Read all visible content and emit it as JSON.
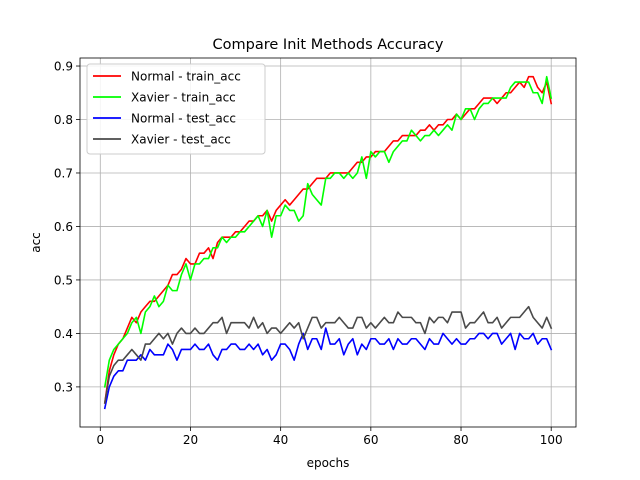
{
  "chart_data": {
    "type": "line",
    "title": "Compare Init Methods Accuracy",
    "xlabel": "epochs",
    "ylabel": "acc",
    "xlim": [
      -4.5,
      105.5
    ],
    "ylim": [
      0.225,
      0.915
    ],
    "xticks": [
      0,
      20,
      40,
      60,
      80,
      100
    ],
    "yticks": [
      0.3,
      0.4,
      0.5,
      0.6,
      0.7,
      0.8,
      0.9
    ],
    "grid": true,
    "legend_position": "top-left",
    "x": [
      1,
      2,
      3,
      4,
      5,
      6,
      7,
      8,
      9,
      10,
      11,
      12,
      13,
      14,
      15,
      16,
      17,
      18,
      19,
      20,
      21,
      22,
      23,
      24,
      25,
      26,
      27,
      28,
      29,
      30,
      31,
      32,
      33,
      34,
      35,
      36,
      37,
      38,
      39,
      40,
      41,
      42,
      43,
      44,
      45,
      46,
      47,
      48,
      49,
      50,
      51,
      52,
      53,
      54,
      55,
      56,
      57,
      58,
      59,
      60,
      61,
      62,
      63,
      64,
      65,
      66,
      67,
      68,
      69,
      70,
      71,
      72,
      73,
      74,
      75,
      76,
      77,
      78,
      79,
      80,
      81,
      82,
      83,
      84,
      85,
      86,
      87,
      88,
      89,
      90,
      91,
      92,
      93,
      94,
      95,
      96,
      97,
      98,
      99,
      100
    ],
    "series": [
      {
        "name": "Normal - train_acc",
        "color": "#ff0000",
        "values": [
          0.27,
          0.33,
          0.36,
          0.38,
          0.39,
          0.41,
          0.43,
          0.42,
          0.44,
          0.45,
          0.46,
          0.46,
          0.47,
          0.48,
          0.49,
          0.51,
          0.51,
          0.52,
          0.54,
          0.53,
          0.53,
          0.55,
          0.55,
          0.56,
          0.54,
          0.57,
          0.58,
          0.58,
          0.58,
          0.59,
          0.59,
          0.6,
          0.61,
          0.61,
          0.62,
          0.62,
          0.63,
          0.61,
          0.63,
          0.64,
          0.65,
          0.64,
          0.65,
          0.66,
          0.67,
          0.67,
          0.68,
          0.69,
          0.69,
          0.69,
          0.7,
          0.7,
          0.7,
          0.7,
          0.7,
          0.71,
          0.72,
          0.72,
          0.73,
          0.73,
          0.74,
          0.74,
          0.74,
          0.75,
          0.76,
          0.76,
          0.77,
          0.77,
          0.77,
          0.77,
          0.78,
          0.78,
          0.79,
          0.78,
          0.79,
          0.79,
          0.8,
          0.8,
          0.81,
          0.8,
          0.81,
          0.82,
          0.82,
          0.83,
          0.84,
          0.84,
          0.84,
          0.83,
          0.84,
          0.85,
          0.85,
          0.86,
          0.87,
          0.86,
          0.88,
          0.88,
          0.86,
          0.85,
          0.87,
          0.83
        ]
      },
      {
        "name": "Xavier - train_acc",
        "color": "#00ff00",
        "values": [
          0.3,
          0.35,
          0.37,
          0.38,
          0.39,
          0.4,
          0.42,
          0.43,
          0.4,
          0.44,
          0.45,
          0.47,
          0.45,
          0.46,
          0.49,
          0.48,
          0.48,
          0.51,
          0.53,
          0.5,
          0.53,
          0.53,
          0.54,
          0.54,
          0.56,
          0.56,
          0.58,
          0.57,
          0.58,
          0.58,
          0.59,
          0.59,
          0.6,
          0.61,
          0.62,
          0.6,
          0.63,
          0.58,
          0.62,
          0.62,
          0.64,
          0.63,
          0.63,
          0.61,
          0.62,
          0.68,
          0.66,
          0.65,
          0.64,
          0.69,
          0.69,
          0.7,
          0.7,
          0.69,
          0.7,
          0.69,
          0.7,
          0.73,
          0.69,
          0.74,
          0.73,
          0.74,
          0.74,
          0.72,
          0.74,
          0.75,
          0.76,
          0.76,
          0.78,
          0.77,
          0.76,
          0.77,
          0.77,
          0.78,
          0.77,
          0.78,
          0.79,
          0.78,
          0.81,
          0.8,
          0.82,
          0.82,
          0.8,
          0.82,
          0.83,
          0.83,
          0.84,
          0.84,
          0.84,
          0.84,
          0.86,
          0.87,
          0.87,
          0.87,
          0.87,
          0.85,
          0.85,
          0.83,
          0.88,
          0.84
        ]
      },
      {
        "name": "Normal - test_acc",
        "color": "#0000ff",
        "values": [
          0.26,
          0.3,
          0.32,
          0.33,
          0.33,
          0.35,
          0.35,
          0.35,
          0.36,
          0.35,
          0.37,
          0.36,
          0.36,
          0.36,
          0.38,
          0.37,
          0.35,
          0.37,
          0.37,
          0.37,
          0.38,
          0.37,
          0.37,
          0.38,
          0.36,
          0.35,
          0.37,
          0.37,
          0.38,
          0.38,
          0.37,
          0.37,
          0.38,
          0.37,
          0.38,
          0.36,
          0.37,
          0.35,
          0.36,
          0.38,
          0.38,
          0.37,
          0.35,
          0.38,
          0.4,
          0.37,
          0.39,
          0.39,
          0.37,
          0.41,
          0.38,
          0.38,
          0.39,
          0.36,
          0.38,
          0.39,
          0.36,
          0.38,
          0.37,
          0.39,
          0.39,
          0.38,
          0.38,
          0.39,
          0.37,
          0.39,
          0.38,
          0.38,
          0.39,
          0.39,
          0.38,
          0.37,
          0.39,
          0.38,
          0.38,
          0.4,
          0.39,
          0.38,
          0.39,
          0.38,
          0.38,
          0.39,
          0.39,
          0.4,
          0.4,
          0.39,
          0.4,
          0.4,
          0.38,
          0.39,
          0.4,
          0.37,
          0.4,
          0.39,
          0.39,
          0.4,
          0.38,
          0.39,
          0.39,
          0.37
        ]
      },
      {
        "name": "Xavier - test_acc",
        "color": "#4a4a4a",
        "values": [
          0.27,
          0.32,
          0.34,
          0.35,
          0.35,
          0.36,
          0.37,
          0.36,
          0.35,
          0.38,
          0.38,
          0.39,
          0.4,
          0.39,
          0.4,
          0.38,
          0.4,
          0.41,
          0.4,
          0.4,
          0.41,
          0.4,
          0.4,
          0.41,
          0.42,
          0.42,
          0.43,
          0.4,
          0.42,
          0.42,
          0.42,
          0.42,
          0.41,
          0.43,
          0.41,
          0.42,
          0.4,
          0.41,
          0.41,
          0.4,
          0.41,
          0.42,
          0.41,
          0.42,
          0.39,
          0.41,
          0.43,
          0.43,
          0.41,
          0.42,
          0.42,
          0.42,
          0.43,
          0.42,
          0.41,
          0.41,
          0.43,
          0.43,
          0.41,
          0.42,
          0.41,
          0.42,
          0.43,
          0.42,
          0.42,
          0.44,
          0.43,
          0.43,
          0.43,
          0.42,
          0.42,
          0.4,
          0.43,
          0.42,
          0.43,
          0.43,
          0.42,
          0.44,
          0.44,
          0.44,
          0.41,
          0.42,
          0.42,
          0.43,
          0.44,
          0.42,
          0.42,
          0.43,
          0.41,
          0.42,
          0.43,
          0.43,
          0.43,
          0.44,
          0.45,
          0.43,
          0.42,
          0.41,
          0.43,
          0.41
        ]
      }
    ]
  }
}
